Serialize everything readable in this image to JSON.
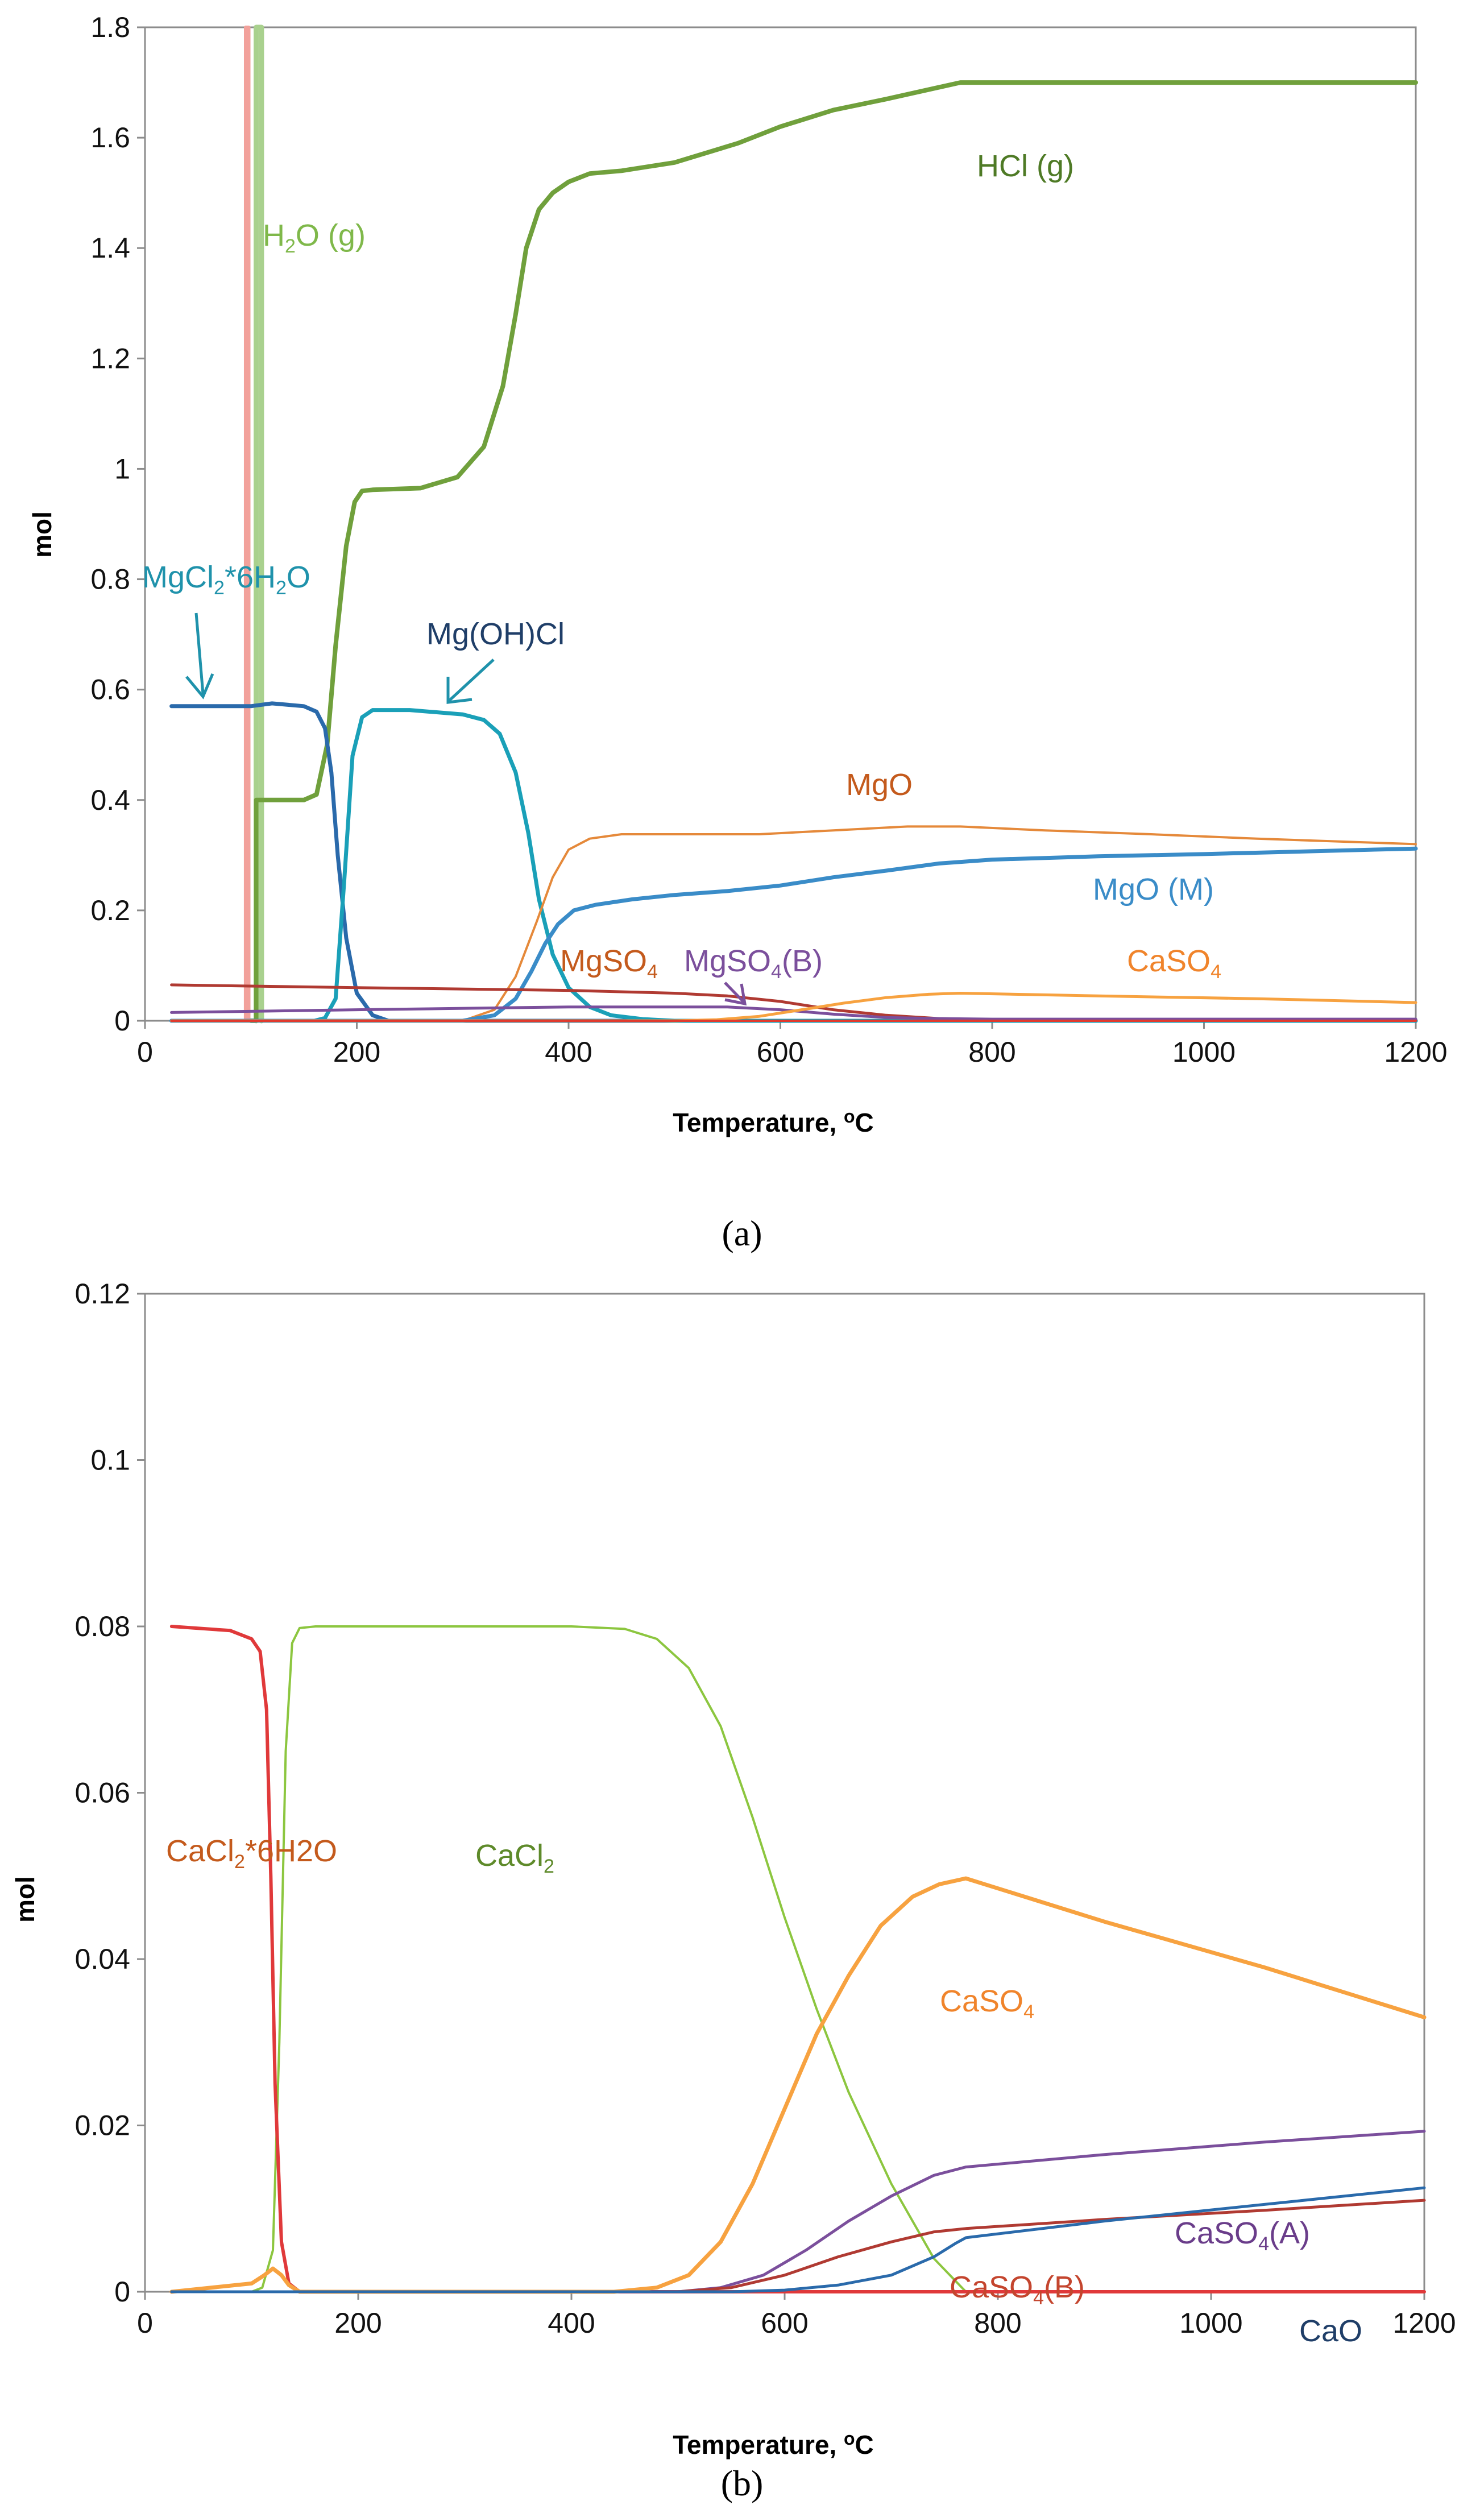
{
  "captions": {
    "a": "(a)",
    "b": "(b)"
  },
  "chart_data": [
    {
      "type": "line",
      "panel": "a",
      "xlabel": "Temperature, ",
      "xlabel_sup": "o",
      "xlabel_unit": "C",
      "ylabel": "mol",
      "xlim": [
        0,
        1200
      ],
      "ylim": [
        0,
        1.8
      ],
      "x_ticks": [
        0,
        200,
        400,
        600,
        800,
        1000,
        1200
      ],
      "y_ticks": [
        0,
        0.2,
        0.4,
        0.6,
        0.8,
        1,
        1.2,
        1.4,
        1.6,
        1.8
      ],
      "x_tick_labels": [
        "0",
        "200",
        "400",
        "600",
        "800",
        "1000",
        "1200"
      ],
      "y_tick_labels": [
        "0",
        "0.2",
        "0.4",
        "0.6",
        "0.8",
        "1",
        "1.2",
        "1.4",
        "1.6",
        "1.8"
      ],
      "series": [
        {
          "name": "H2O (g) pink",
          "color": "#f2a19b",
          "width": 6,
          "x": [
            95,
            95.01,
            98,
            98.01
          ],
          "y": [
            0,
            1.8,
            1.8,
            0
          ]
        },
        {
          "name": "H2O (g)",
          "color": "#a9d18e",
          "width": 9,
          "x": [
            105,
            105.01,
            110,
            110.01
          ],
          "y": [
            0,
            1.8,
            1.8,
            0
          ]
        },
        {
          "name": "HCl (g)",
          "color": "#70a03c",
          "width": 8,
          "x": [
            100,
            105,
            105.01,
            150,
            162,
            172,
            180,
            190,
            198,
            205,
            215,
            260,
            295,
            320,
            338,
            350,
            360,
            372,
            385,
            400,
            420,
            450,
            500,
            560,
            600,
            650,
            700,
            770,
            1200
          ],
          "y": [
            0,
            0,
            0.4,
            0.4,
            0.41,
            0.5,
            0.68,
            0.86,
            0.94,
            0.96,
            0.962,
            0.965,
            0.985,
            1.04,
            1.15,
            1.28,
            1.4,
            1.47,
            1.5,
            1.52,
            1.535,
            1.54,
            1.555,
            1.59,
            1.62,
            1.65,
            1.67,
            1.7,
            1.7
          ]
        },
        {
          "name": "MgCl2*6H2O",
          "color": "#2a6aab",
          "width": 7,
          "x": [
            25,
            100,
            120,
            150,
            162,
            170,
            176,
            182,
            190,
            200,
            215,
            230,
            1200
          ],
          "y": [
            0.57,
            0.57,
            0.575,
            0.57,
            0.56,
            0.53,
            0.45,
            0.3,
            0.15,
            0.05,
            0.01,
            0,
            0
          ]
        },
        {
          "name": "Mg(OH)Cl",
          "color": "#1aa0b8",
          "width": 7,
          "x": [
            25,
            160,
            170,
            180,
            188,
            196,
            205,
            215,
            250,
            300,
            320,
            335,
            350,
            362,
            372,
            385,
            400,
            420,
            440,
            470,
            500,
            1200
          ],
          "y": [
            0,
            0,
            0.005,
            0.04,
            0.25,
            0.48,
            0.55,
            0.563,
            0.563,
            0.555,
            0.545,
            0.52,
            0.45,
            0.34,
            0.22,
            0.12,
            0.06,
            0.025,
            0.01,
            0.003,
            0,
            0
          ]
        },
        {
          "name": "MgO",
          "color": "#e5893a",
          "width": 4,
          "x": [
            25,
            300,
            330,
            350,
            370,
            385,
            400,
            420,
            450,
            500,
            580,
            650,
            720,
            770,
            850,
            950,
            1050,
            1200
          ],
          "y": [
            0,
            0,
            0.02,
            0.08,
            0.18,
            0.26,
            0.31,
            0.33,
            0.338,
            0.338,
            0.338,
            0.345,
            0.352,
            0.352,
            0.345,
            0.338,
            0.33,
            0.32
          ]
        },
        {
          "name": "MgO (M)",
          "color": "#3a8cc8",
          "width": 7,
          "x": [
            25,
            300,
            330,
            350,
            365,
            378,
            390,
            405,
            425,
            460,
            500,
            550,
            600,
            650,
            700,
            750,
            800,
            900,
            1000,
            1100,
            1200
          ],
          "y": [
            0,
            0,
            0.01,
            0.04,
            0.09,
            0.14,
            0.175,
            0.2,
            0.21,
            0.22,
            0.228,
            0.235,
            0.245,
            0.26,
            0.272,
            0.285,
            0.292,
            0.298,
            0.302,
            0.307,
            0.312
          ]
        },
        {
          "name": "MgSO4 (red)",
          "color": "#b03a32",
          "width": 5,
          "x": [
            25,
            200,
            400,
            500,
            550,
            600,
            650,
            700,
            750,
            800,
            1200
          ],
          "y": [
            0.065,
            0.06,
            0.055,
            0.05,
            0.045,
            0.035,
            0.02,
            0.01,
            0.004,
            0.002,
            0.002
          ]
        },
        {
          "name": "MgSO4 (B)",
          "color": "#7b4f9c",
          "width": 5,
          "x": [
            25,
            200,
            400,
            550,
            600,
            650,
            700,
            750,
            800,
            1200
          ],
          "y": [
            0.015,
            0.02,
            0.025,
            0.025,
            0.02,
            0.012,
            0.006,
            0.004,
            0.003,
            0.003
          ]
        },
        {
          "name": "CaSO4",
          "color": "#f7a240",
          "width": 5,
          "x": [
            25,
            500,
            540,
            580,
            620,
            660,
            700,
            740,
            770,
            900,
            1050,
            1200
          ],
          "y": [
            0,
            0,
            0.002,
            0.008,
            0.02,
            0.032,
            0.042,
            0.048,
            0.05,
            0.045,
            0.04,
            0.033
          ]
        },
        {
          "name": "baseline",
          "color": "#e03a2e",
          "width": 4,
          "x": [
            25,
            1200
          ],
          "y": [
            0,
            0
          ]
        }
      ],
      "labels": [
        {
          "id": "h2o",
          "main": "H",
          "sub": "2",
          "rest": "O (g)",
          "color": "#7fb84a"
        },
        {
          "id": "hcl",
          "main": "HCl (g)",
          "color": "#4e7a25"
        },
        {
          "id": "mgcl2",
          "main": "MgCl",
          "sub": "2",
          "rest": "*6H",
          "sub2": "2",
          "rest2": "O",
          "color": "#1f92ab"
        },
        {
          "id": "mgohcl",
          "main": "Mg(OH)Cl",
          "color": "#1f3e68"
        },
        {
          "id": "mgo",
          "main": "MgO",
          "color": "#c45a1c"
        },
        {
          "id": "mgom",
          "main": "MgO (M)",
          "color": "#3a8cc8"
        },
        {
          "id": "mgso4",
          "main": "MgSO",
          "sub": "4",
          "color": "#c45a1c"
        },
        {
          "id": "mgso4b",
          "main": "MgSO",
          "sub": "4",
          "rest": "(B)",
          "color": "#7b4f9c"
        },
        {
          "id": "caso4",
          "main": "CaSO",
          "sub": "4",
          "color": "#f0842b"
        }
      ]
    },
    {
      "type": "line",
      "panel": "b",
      "xlabel": "Temperature, ",
      "xlabel_sup": "o",
      "xlabel_unit": "C",
      "ylabel": "mol",
      "xlim": [
        0,
        1200
      ],
      "ylim": [
        0,
        0.12
      ],
      "x_ticks": [
        0,
        200,
        400,
        600,
        800,
        1000,
        1200
      ],
      "y_ticks": [
        0,
        0.02,
        0.04,
        0.06,
        0.08,
        0.1,
        0.12
      ],
      "x_tick_labels": [
        "0",
        "200",
        "400",
        "600",
        "800",
        "1000",
        "1200"
      ],
      "y_tick_labels": [
        "0",
        "0.02",
        "0.04",
        "0.06",
        "0.08",
        "0.1",
        "0.12"
      ],
      "series": [
        {
          "name": "CaCl2",
          "color": "#8cc63f",
          "width": 4,
          "x": [
            25,
            100,
            110,
            120,
            126,
            132,
            138,
            145,
            160,
            400,
            450,
            480,
            510,
            540,
            570,
            600,
            630,
            660,
            700,
            740,
            770,
            1200
          ],
          "y": [
            0,
            0,
            0.0005,
            0.005,
            0.03,
            0.065,
            0.078,
            0.0798,
            0.08,
            0.08,
            0.0797,
            0.0785,
            0.075,
            0.068,
            0.057,
            0.045,
            0.034,
            0.024,
            0.013,
            0.004,
            0,
            0
          ]
        },
        {
          "name": "CaCl2*6H2O",
          "color": "#e0393a",
          "width": 6,
          "x": [
            25,
            80,
            100,
            108,
            114,
            118,
            122,
            128,
            135,
            145,
            1200
          ],
          "y": [
            0.08,
            0.0795,
            0.0785,
            0.077,
            0.07,
            0.05,
            0.025,
            0.006,
            0.001,
            0,
            0
          ]
        },
        {
          "name": "CaSO4",
          "color": "#f7a240",
          "width": 7,
          "x": [
            25,
            100,
            112,
            120,
            128,
            135,
            145,
            440,
            480,
            510,
            540,
            570,
            600,
            630,
            660,
            690,
            720,
            745,
            770,
            900,
            1050,
            1200
          ],
          "y": [
            0,
            0.001,
            0.002,
            0.0028,
            0.002,
            0.0008,
            0,
            0,
            0.0005,
            0.002,
            0.006,
            0.013,
            0.022,
            0.031,
            0.038,
            0.044,
            0.0475,
            0.049,
            0.0497,
            0.0445,
            0.039,
            0.033
          ]
        },
        {
          "name": "CaSO4(A)",
          "color": "#7b4f9c",
          "width": 5,
          "x": [
            25,
            500,
            540,
            580,
            620,
            660,
            700,
            740,
            770,
            900,
            1050,
            1200
          ],
          "y": [
            0,
            0,
            0.0005,
            0.002,
            0.005,
            0.0085,
            0.0115,
            0.014,
            0.015,
            0.0165,
            0.018,
            0.0193
          ]
        },
        {
          "name": "CaSO4(B)",
          "color": "#b03a32",
          "width": 5,
          "x": [
            25,
            500,
            550,
            600,
            650,
            700,
            740,
            770,
            900,
            1050,
            1200
          ],
          "y": [
            0,
            0,
            0.0005,
            0.002,
            0.0042,
            0.006,
            0.0072,
            0.0076,
            0.0087,
            0.0098,
            0.011
          ]
        },
        {
          "name": "CaO",
          "color": "#2a6aab",
          "width": 5,
          "x": [
            25,
            550,
            600,
            650,
            700,
            740,
            760,
            770,
            900,
            1050,
            1200
          ],
          "y": [
            0,
            0,
            0.0002,
            0.0008,
            0.002,
            0.0042,
            0.0058,
            0.0065,
            0.0085,
            0.0105,
            0.0125
          ]
        }
      ],
      "labels": [
        {
          "id": "cacl2h",
          "main": "CaCl",
          "sub": "2",
          "rest": "*6H2O",
          "color": "#c45a1c"
        },
        {
          "id": "cacl2",
          "main": "CaCl",
          "sub": "2",
          "color": "#5e8a2a"
        },
        {
          "id": "caso4",
          "main": "CaSO",
          "sub": "4",
          "color": "#f0842b"
        },
        {
          "id": "caso4a",
          "main": "CaSO",
          "sub": "4",
          "rest": "(A)",
          "color": "#6a3d8a"
        },
        {
          "id": "caso4b",
          "main": "CaSO",
          "sub": "4",
          "rest": "(B)",
          "color": "#c4452e"
        },
        {
          "id": "cao",
          "main": "CaO",
          "color": "#1f3e68"
        }
      ]
    }
  ]
}
